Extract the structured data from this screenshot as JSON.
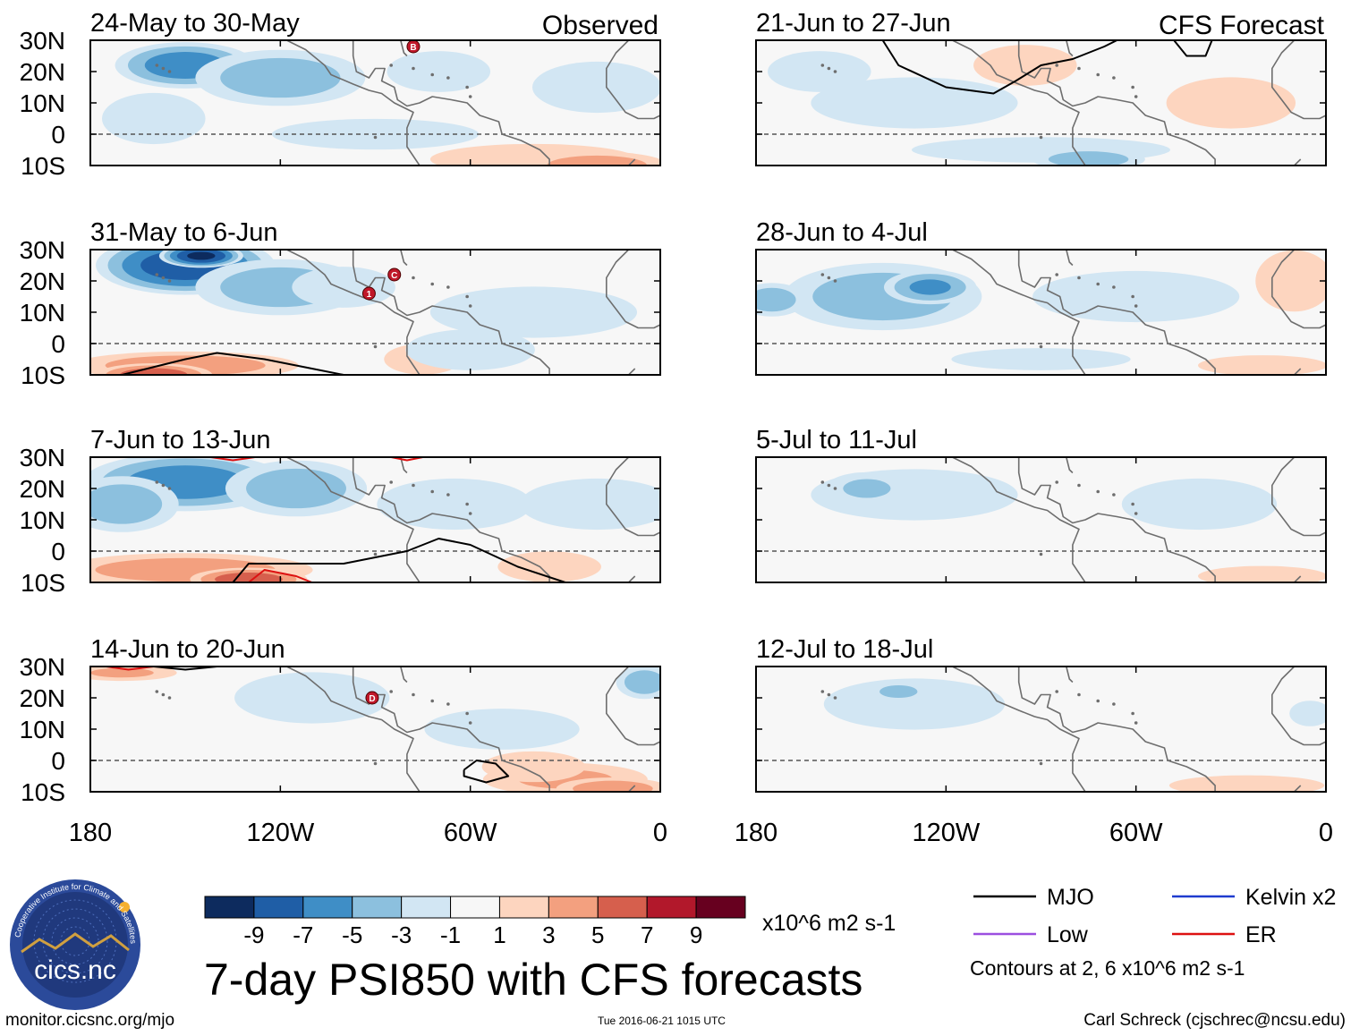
{
  "figure": {
    "title": "7-day PSI850 with CFS forecasts",
    "observed_label": "Observed",
    "forecast_label": "CFS Forecast",
    "contour_note": "Contours at 2, 6 x10^6 m2 s-1",
    "units": "x10^6 m2 s-1",
    "footer_left": "monitor.cicsnc.org/mjo",
    "footer_mid": "Tue 2016-06-21 1015 UTC",
    "footer_right": "Carl Schreck (cjschrec@ncsu.edu)",
    "logo_text": "cics.nc",
    "logo_ring_text": "Cooperative Institute for Climate and Satellites"
  },
  "chart_data": {
    "type": "heatmap",
    "variable": "PSI850 anomaly",
    "x_range": [
      -180,
      0
    ],
    "y_range": [
      -10,
      30
    ],
    "x_ticks": [
      {
        "value": -180,
        "label": "180"
      },
      {
        "value": -120,
        "label": "120W"
      },
      {
        "value": -60,
        "label": "60W"
      },
      {
        "value": 0,
        "label": "0"
      }
    ],
    "y_ticks": [
      {
        "value": 30,
        "label": "30N"
      },
      {
        "value": 20,
        "label": "20N"
      },
      {
        "value": 10,
        "label": "10N"
      },
      {
        "value": 0,
        "label": "0"
      },
      {
        "value": -10,
        "label": "10S"
      }
    ],
    "colorbar": {
      "levels": [
        -9,
        -7,
        -5,
        -3,
        -1,
        1,
        3,
        5,
        7,
        9
      ],
      "colors": [
        "#0d2b5e",
        "#1f5ea6",
        "#3f8ec6",
        "#8cc0de",
        "#d2e6f3",
        "#f7f7f7",
        "#fdd5bf",
        "#f3a07f",
        "#d65f4d",
        "#b2182b",
        "#67001f"
      ]
    },
    "panels": [
      {
        "id": "obs1",
        "title": "24-May to 30-May",
        "kind": "observed",
        "blobs": [
          [
            -150,
            22,
            24,
            8,
            -6
          ],
          [
            -120,
            18,
            30,
            10,
            -4
          ],
          [
            -160,
            5,
            20,
            10,
            -2
          ],
          [
            -70,
            20,
            20,
            8,
            -2
          ],
          [
            -20,
            15,
            25,
            10,
            -2
          ],
          [
            -40,
            -8,
            40,
            6,
            2
          ],
          [
            -20,
            -10,
            25,
            5,
            4
          ],
          [
            -90,
            0,
            40,
            6,
            -2
          ]
        ],
        "contours": [],
        "markers": [
          {
            "lon": -78,
            "lat": 28,
            "label": "B"
          }
        ]
      },
      {
        "id": "obs2",
        "title": "31-May to 6-Jun",
        "kind": "observed",
        "blobs": [
          [
            -150,
            25,
            30,
            10,
            -8
          ],
          [
            -145,
            28,
            14,
            4,
            -9
          ],
          [
            -120,
            18,
            30,
            10,
            -4
          ],
          [
            -100,
            18,
            20,
            8,
            -2
          ],
          [
            -150,
            -7,
            40,
            5,
            4
          ],
          [
            -160,
            -10,
            20,
            4,
            6
          ],
          [
            -75,
            -5,
            15,
            6,
            2
          ],
          [
            -40,
            10,
            40,
            10,
            -2
          ],
          [
            -60,
            -2,
            25,
            8,
            -2
          ]
        ],
        "contours": [
          {
            "color": "#000000",
            "points": [
              [
                -170,
                -10
              ],
              [
                -150,
                -5
              ],
              [
                -140,
                -3
              ],
              [
                -125,
                -5
              ],
              [
                -110,
                -8
              ],
              [
                -100,
                -10
              ]
            ]
          }
        ],
        "markers": [
          {
            "lon": -92,
            "lat": 16,
            "label": "1"
          },
          {
            "lon": -84,
            "lat": 22,
            "label": "C"
          }
        ]
      },
      {
        "id": "obs3",
        "title": "7-Jun to 13-Jun",
        "kind": "observed",
        "blobs": [
          [
            -150,
            22,
            35,
            10,
            -6
          ],
          [
            -115,
            20,
            25,
            10,
            -4
          ],
          [
            -170,
            15,
            20,
            10,
            -4
          ],
          [
            -150,
            -6,
            45,
            6,
            4
          ],
          [
            -130,
            -9,
            20,
            4,
            6
          ],
          [
            -65,
            15,
            30,
            10,
            -2
          ],
          [
            -20,
            15,
            30,
            10,
            -2
          ],
          [
            -35,
            -5,
            20,
            6,
            2
          ]
        ],
        "contours": [
          {
            "color": "#000000",
            "points": [
              [
                -135,
                -10
              ],
              [
                -130,
                -4
              ],
              [
                -100,
                -4
              ],
              [
                -80,
                0
              ],
              [
                -70,
                4
              ],
              [
                -60,
                2
              ],
              [
                -45,
                -5
              ],
              [
                -30,
                -10
              ]
            ]
          },
          {
            "color": "#dd1111",
            "points": [
              [
                -130,
                -10
              ],
              [
                -125,
                -6
              ],
              [
                -115,
                -8
              ],
              [
                -110,
                -10
              ]
            ]
          },
          {
            "color": "#dd1111",
            "points": [
              [
                -142,
                30
              ],
              [
                -135,
                29
              ],
              [
                -128,
                30
              ]
            ]
          },
          {
            "color": "#dd1111",
            "points": [
              [
                -85,
                30
              ],
              [
                -80,
                29
              ],
              [
                -75,
                30
              ]
            ]
          }
        ],
        "markers": []
      },
      {
        "id": "obs4",
        "title": "14-Jun to 20-Jun",
        "kind": "observed",
        "blobs": [
          [
            -110,
            20,
            30,
            10,
            -2
          ],
          [
            -50,
            10,
            30,
            8,
            -2
          ],
          [
            -170,
            28,
            20,
            3,
            3
          ],
          [
            -30,
            -6,
            30,
            6,
            3
          ],
          [
            -15,
            -9,
            20,
            4,
            4
          ],
          [
            -40,
            -2,
            20,
            6,
            2
          ],
          [
            -5,
            25,
            10,
            6,
            -4
          ]
        ],
        "contours": [
          {
            "color": "#000000",
            "points": [
              [
                -62,
                -3
              ],
              [
                -58,
                0
              ],
              [
                -52,
                -1
              ],
              [
                -48,
                -5
              ],
              [
                -55,
                -7
              ],
              [
                -62,
                -5
              ],
              [
                -62,
                -3
              ]
            ]
          },
          {
            "color": "#000000",
            "points": [
              [
                -160,
                30
              ],
              [
                -150,
                29
              ],
              [
                -140,
                30
              ]
            ]
          },
          {
            "color": "#dd1111",
            "points": [
              [
                -175,
                30
              ],
              [
                -168,
                29
              ],
              [
                -160,
                30
              ]
            ]
          }
        ],
        "markers": [
          {
            "lon": -91,
            "lat": 20,
            "label": "D"
          }
        ]
      },
      {
        "id": "fc1",
        "title": "21-Jun to 27-Jun",
        "kind": "forecast",
        "blobs": [
          [
            -130,
            10,
            40,
            10,
            -2
          ],
          [
            -90,
            -5,
            50,
            5,
            -2
          ],
          [
            -75,
            -8,
            20,
            4,
            -4
          ],
          [
            -95,
            22,
            20,
            8,
            2
          ],
          [
            -30,
            10,
            25,
            10,
            2
          ],
          [
            -160,
            20,
            20,
            8,
            -2
          ]
        ],
        "contours": [
          {
            "color": "#000000",
            "points": [
              [
                -140,
                30
              ],
              [
                -135,
                22
              ],
              [
                -120,
                15
              ],
              [
                -105,
                13
              ],
              [
                -98,
                17
              ],
              [
                -90,
                22
              ],
              [
                -80,
                24
              ],
              [
                -70,
                28
              ],
              [
                -66,
                30
              ]
            ]
          },
          {
            "color": "#000000",
            "points": [
              [
                -48,
                30
              ],
              [
                -44,
                25
              ],
              [
                -38,
                25
              ],
              [
                -36,
                30
              ]
            ]
          }
        ],
        "markers": []
      },
      {
        "id": "fc2",
        "title": "28-Jun to 4-Jul",
        "kind": "forecast",
        "blobs": [
          [
            -140,
            15,
            35,
            12,
            -4
          ],
          [
            -125,
            18,
            16,
            6,
            -5
          ],
          [
            -175,
            14,
            12,
            6,
            -4
          ],
          [
            -60,
            15,
            40,
            10,
            -2
          ],
          [
            -10,
            20,
            15,
            12,
            2
          ],
          [
            -20,
            -7,
            25,
            4,
            2
          ],
          [
            -90,
            -5,
            40,
            5,
            -1
          ]
        ],
        "contours": [],
        "markers": []
      },
      {
        "id": "fc3",
        "title": "5-Jul to 11-Jul",
        "kind": "forecast",
        "blobs": [
          [
            -130,
            18,
            40,
            10,
            -2
          ],
          [
            -145,
            20,
            15,
            6,
            -3
          ],
          [
            -40,
            15,
            30,
            10,
            -2
          ],
          [
            -20,
            -8,
            25,
            4,
            2
          ]
        ],
        "contours": [],
        "markers": []
      },
      {
        "id": "fc4",
        "title": "12-Jul to 18-Jul",
        "kind": "forecast",
        "blobs": [
          [
            -130,
            18,
            35,
            10,
            -2
          ],
          [
            -135,
            22,
            12,
            4,
            -3
          ],
          [
            -25,
            -8,
            30,
            4,
            2
          ],
          [
            -5,
            15,
            8,
            5,
            -2
          ]
        ],
        "contours": [],
        "markers": []
      }
    ]
  },
  "legend": {
    "items": [
      {
        "label": "MJO",
        "color": "#000000"
      },
      {
        "label": "Kelvin x2",
        "color": "#1f3ccf"
      },
      {
        "label": "Low",
        "color": "#9b4fe0"
      },
      {
        "label": "ER",
        "color": "#dd1111"
      }
    ]
  }
}
